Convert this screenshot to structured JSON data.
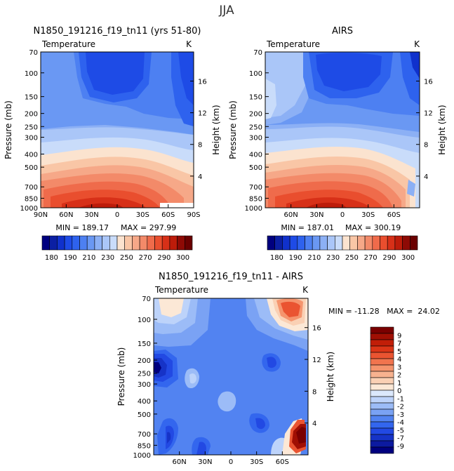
{
  "suptitle": "JJA",
  "colors": {
    "cold": [
      "#00007f",
      "#0b1fa3",
      "#1031cc",
      "#1e4be6",
      "#2e62ee",
      "#4d80f2",
      "#6a98f3",
      "#8cb0f5",
      "#aac6f8",
      "#c9dcfa"
    ],
    "warm": [
      "#fbe3cf",
      "#f9c6a6",
      "#f6a888",
      "#f38a69",
      "#ef6b4b",
      "#e94e2e",
      "#d73018",
      "#bd1c0a",
      "#8e0a05",
      "#6a0000"
    ],
    "diff_cold": [
      "#00007f",
      "#0c1aa0",
      "#1633c7",
      "#2249e3",
      "#3366ee",
      "#5283f1",
      "#7aa2f4",
      "#9cbcf7",
      "#bdd3fa",
      "#dbe8fc"
    ],
    "diff_warm": [
      "#fce8d6",
      "#fad0b4",
      "#f7b28f",
      "#f5946d",
      "#f1744e",
      "#ea5431",
      "#db3517",
      "#c11e08",
      "#a00f03",
      "#7a0000"
    ]
  },
  "chart_data": [
    {
      "type": "heatmap",
      "id": "model",
      "title": "N1850_191216_f19_tn11 (yrs 51-80)",
      "left_label": "Temperature",
      "right_label": "K",
      "ylabel": "Pressure (mb)",
      "y2label": "Height (km)",
      "x_ticks": [
        "90N",
        "60N",
        "30N",
        "0",
        "30S",
        "60S",
        "90S"
      ],
      "y_ticks": [
        "70",
        "100",
        "150",
        "200",
        "250",
        "300",
        "400",
        "500",
        "700",
        "850",
        "1000"
      ],
      "height_ticks": [
        "4",
        "8",
        "12",
        "16"
      ],
      "min_label": "MIN = 189.17",
      "max_label": "MAX = 297.99",
      "min": 189.17,
      "max": 297.99
    },
    {
      "type": "heatmap",
      "id": "airs",
      "title": "AIRS",
      "left_label": "Temperature",
      "right_label": "K",
      "ylabel": "Pressure (mb)",
      "y2label": "Height (km)",
      "x_ticks": [
        "60N",
        "30N",
        "0",
        "30S",
        "60S"
      ],
      "y_ticks": [
        "70",
        "100",
        "150",
        "200",
        "250",
        "300",
        "400",
        "500",
        "700",
        "850",
        "1000"
      ],
      "height_ticks": [
        "4",
        "8",
        "12",
        "16"
      ],
      "min_label": "MIN = 187.01",
      "max_label": "MAX = 300.19",
      "min": 187.01,
      "max": 300.19
    },
    {
      "type": "heatmap",
      "id": "diff",
      "title": "N1850_191216_f19_tn11 - AIRS",
      "left_label": "Temperature",
      "right_label": "K",
      "ylabel": "Pressure (mb)",
      "y2label": "Height (km)",
      "x_ticks": [
        "60N",
        "30N",
        "0",
        "30S",
        "60S"
      ],
      "y_ticks": [
        "70",
        "100",
        "150",
        "200",
        "250",
        "300",
        "400",
        "500",
        "700",
        "850",
        "1000"
      ],
      "height_ticks": [
        "4",
        "8",
        "12",
        "16"
      ],
      "minmax_label": "MIN = -11.28   MAX =  24.02",
      "min": -11.28,
      "max": 24.02
    }
  ],
  "colorbar_abs": {
    "labels": [
      "180",
      "190",
      "210",
      "230",
      "250",
      "270",
      "290",
      "300"
    ]
  },
  "colorbar_diff": {
    "labels": [
      "9",
      "7",
      "5",
      "4",
      "3",
      "2",
      "1",
      "0",
      "-1",
      "-2",
      "-3",
      "-4",
      "-5",
      "-7",
      "-9"
    ]
  }
}
